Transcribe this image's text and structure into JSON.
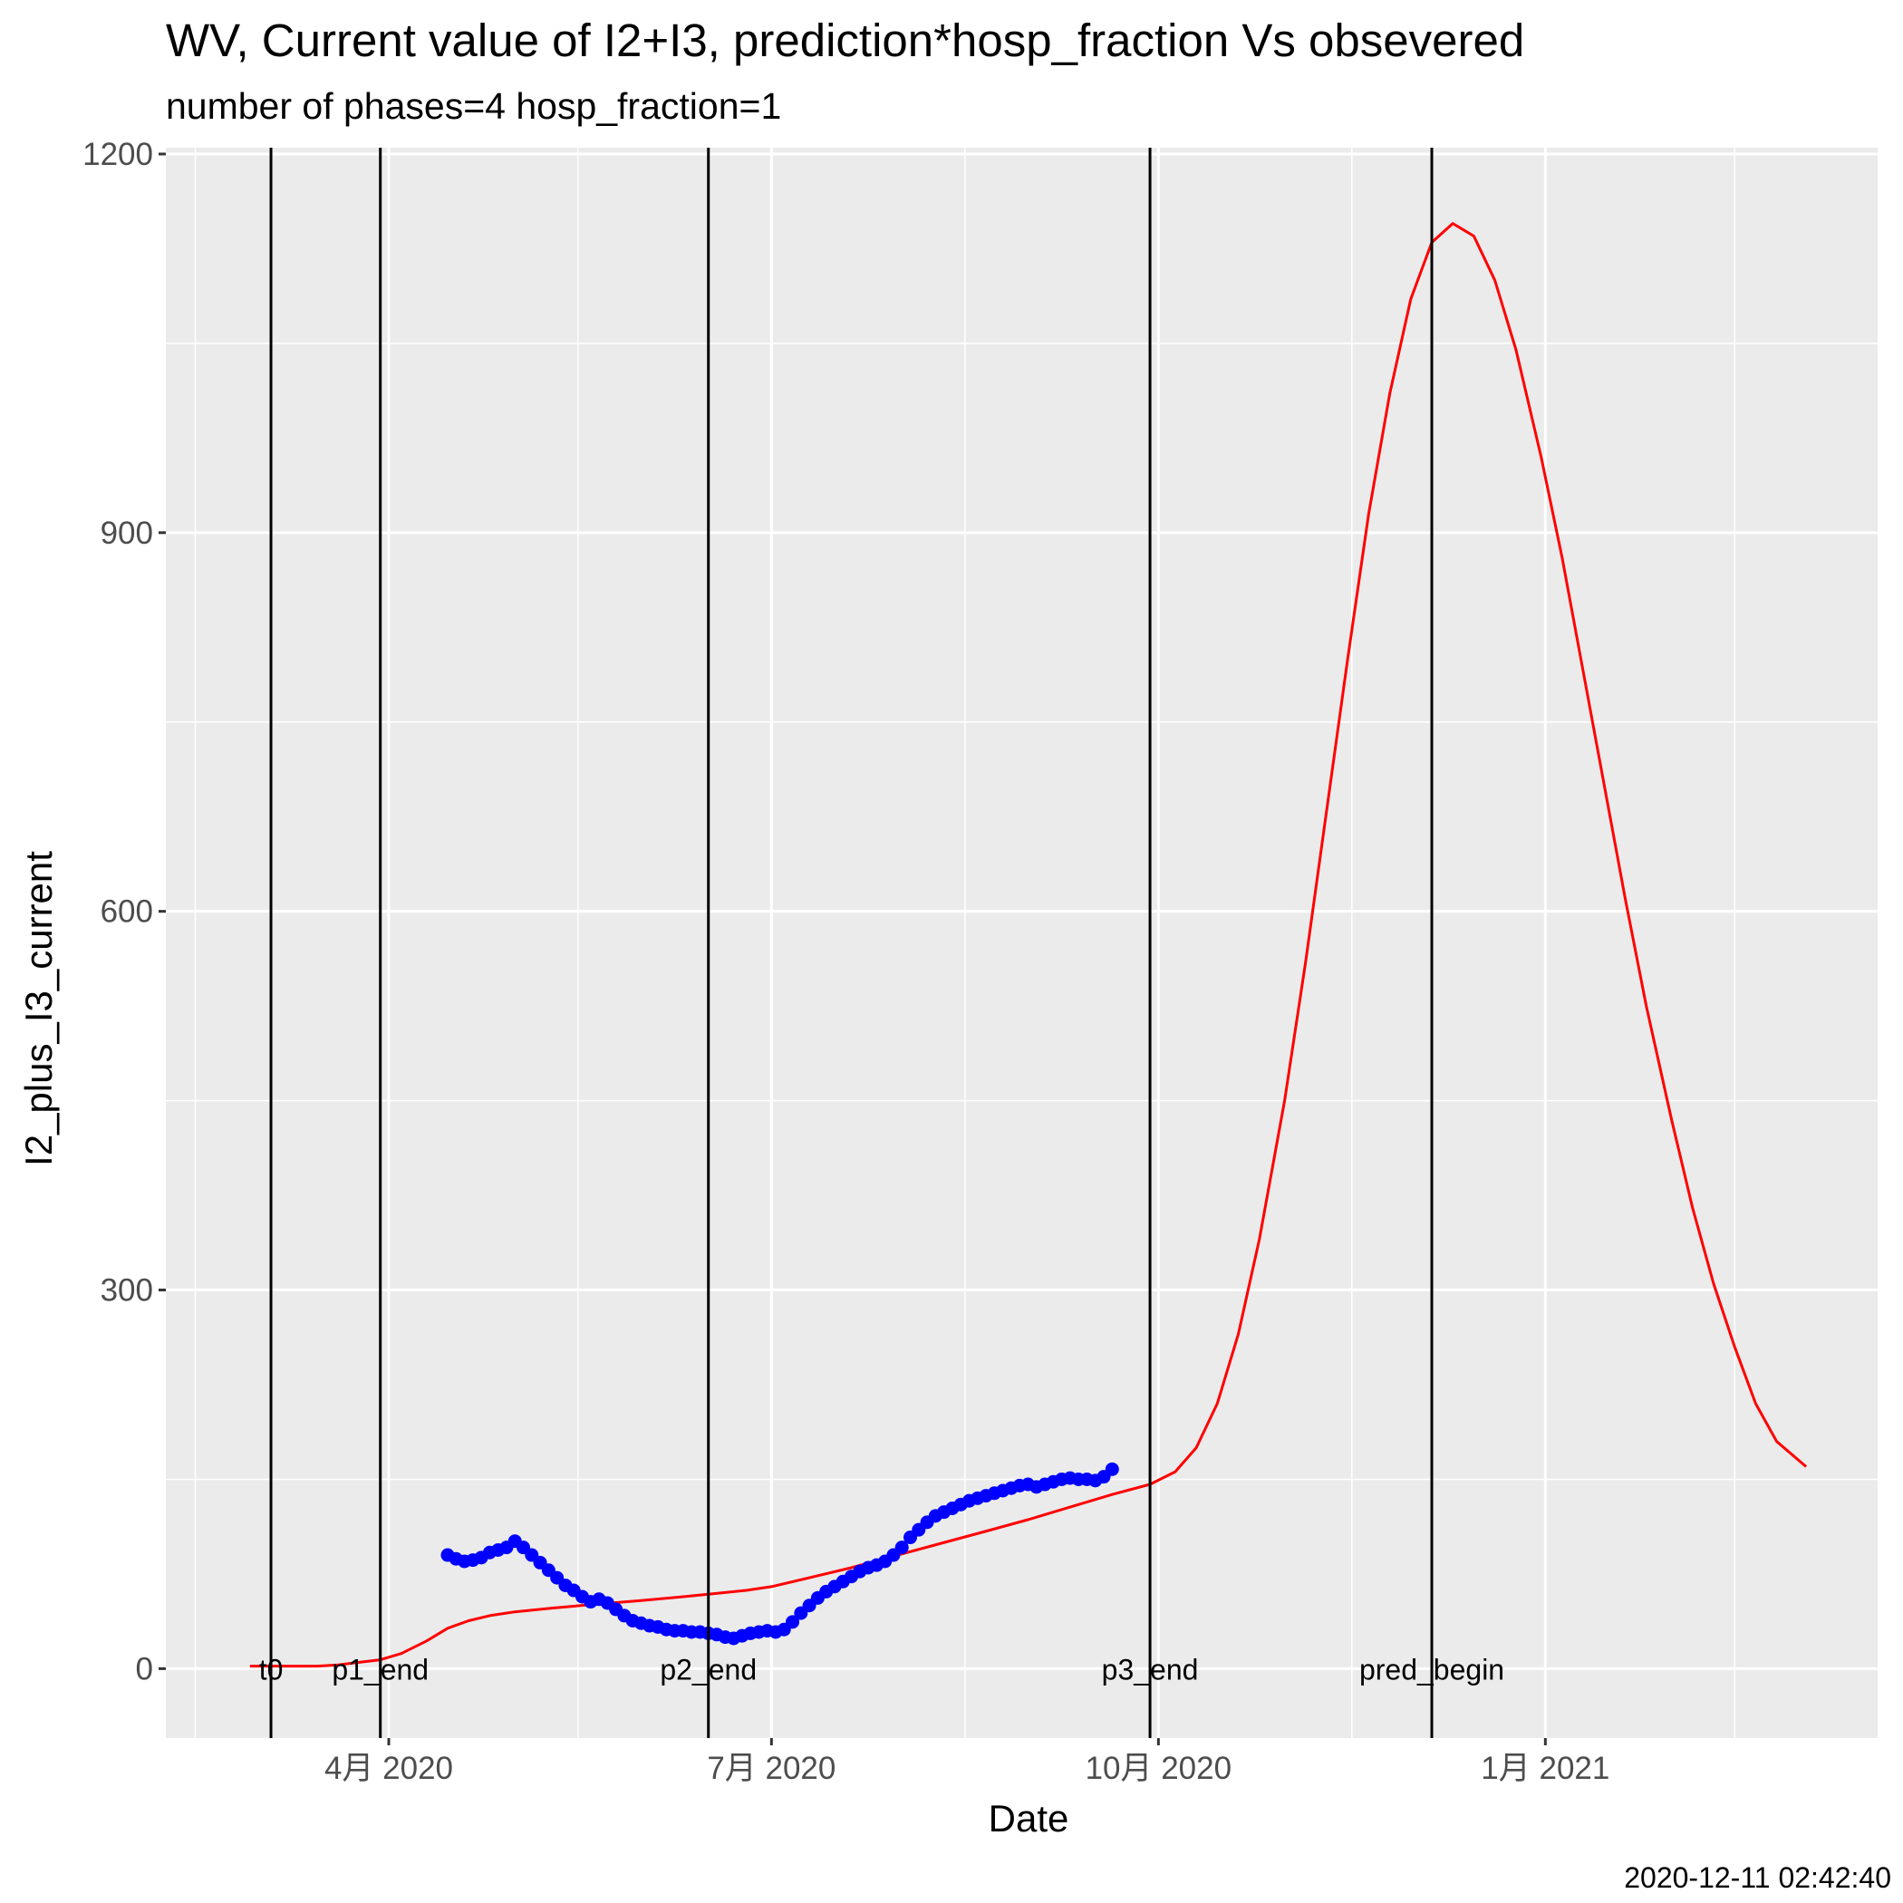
{
  "chart_data": {
    "type": "line",
    "title": "WV, Current value of I2+I3, prediction*hosp_fraction Vs obsevered",
    "subtitle": "number of phases=4   hosp_fraction=1",
    "xlabel": "Date",
    "ylabel": "I2_plus_I3_current",
    "caption": "2020-12-11 02:42:40",
    "xlim": [
      "2020-02-08",
      "2021-03-21"
    ],
    "ylim": [
      -55,
      1205
    ],
    "x_ticks": [
      {
        "date": "2020-04-01",
        "label": "4月 2020"
      },
      {
        "date": "2020-07-01",
        "label": "7月 2020"
      },
      {
        "date": "2020-10-01",
        "label": "10月 2020"
      },
      {
        "date": "2021-01-01",
        "label": "1月 2021"
      }
    ],
    "x_minor_ticks": [
      "2020-02-15",
      "2020-05-16",
      "2020-08-16",
      "2020-11-16",
      "2021-02-15"
    ],
    "y_ticks": [
      0,
      300,
      600,
      900,
      1200
    ],
    "y_minor_ticks": [
      150,
      450,
      750,
      1050
    ],
    "grid": true,
    "background": "#ebebeb",
    "phase_lines": [
      {
        "label": "t0",
        "date": "2020-03-04"
      },
      {
        "label": "p1_end",
        "date": "2020-03-30"
      },
      {
        "label": "p2_end",
        "date": "2020-06-16"
      },
      {
        "label": "p3_end",
        "date": "2020-09-29"
      },
      {
        "label": "pred_begin",
        "date": "2020-12-05"
      }
    ],
    "series": [
      {
        "kind": "line",
        "color": "#ff0000",
        "points": [
          [
            "2020-02-28",
            2
          ],
          [
            "2020-03-04",
            2
          ],
          [
            "2020-03-10",
            2
          ],
          [
            "2020-03-15",
            2
          ],
          [
            "2020-03-20",
            3
          ],
          [
            "2020-03-25",
            5
          ],
          [
            "2020-03-30",
            7
          ],
          [
            "2020-04-04",
            12
          ],
          [
            "2020-04-10",
            22
          ],
          [
            "2020-04-15",
            32
          ],
          [
            "2020-04-20",
            38
          ],
          [
            "2020-04-25",
            42
          ],
          [
            "2020-05-01",
            45
          ],
          [
            "2020-05-10",
            48
          ],
          [
            "2020-05-20",
            51
          ],
          [
            "2020-05-31",
            54
          ],
          [
            "2020-06-10",
            57
          ],
          [
            "2020-06-16",
            59
          ],
          [
            "2020-06-25",
            62
          ],
          [
            "2020-07-01",
            65
          ],
          [
            "2020-07-10",
            72
          ],
          [
            "2020-07-20",
            80
          ],
          [
            "2020-07-31",
            90
          ],
          [
            "2020-08-10",
            99
          ],
          [
            "2020-08-20",
            108
          ],
          [
            "2020-08-31",
            118
          ],
          [
            "2020-09-10",
            128
          ],
          [
            "2020-09-20",
            138
          ],
          [
            "2020-09-29",
            146
          ],
          [
            "2020-10-05",
            156
          ],
          [
            "2020-10-10",
            175
          ],
          [
            "2020-10-15",
            210
          ],
          [
            "2020-10-20",
            265
          ],
          [
            "2020-10-25",
            340
          ],
          [
            "2020-10-31",
            450
          ],
          [
            "2020-11-05",
            560
          ],
          [
            "2020-11-10",
            680
          ],
          [
            "2020-11-15",
            800
          ],
          [
            "2020-11-20",
            915
          ],
          [
            "2020-11-25",
            1010
          ],
          [
            "2020-11-30",
            1085
          ],
          [
            "2020-12-05",
            1130
          ],
          [
            "2020-12-10",
            1145
          ],
          [
            "2020-12-15",
            1135
          ],
          [
            "2020-12-20",
            1100
          ],
          [
            "2020-12-25",
            1045
          ],
          [
            "2020-12-31",
            960
          ],
          [
            "2021-01-05",
            880
          ],
          [
            "2021-01-10",
            790
          ],
          [
            "2021-01-15",
            700
          ],
          [
            "2021-01-20",
            610
          ],
          [
            "2021-01-25",
            525
          ],
          [
            "2021-01-31",
            435
          ],
          [
            "2021-02-05",
            365
          ],
          [
            "2021-02-10",
            305
          ],
          [
            "2021-02-15",
            255
          ],
          [
            "2021-02-20",
            210
          ],
          [
            "2021-02-25",
            180
          ],
          [
            "2021-03-04",
            160
          ]
        ]
      },
      {
        "kind": "points",
        "color": "#0000ff",
        "points": [
          [
            "2020-04-15",
            90
          ],
          [
            "2020-04-17",
            87
          ],
          [
            "2020-04-19",
            85
          ],
          [
            "2020-04-21",
            86
          ],
          [
            "2020-04-23",
            88
          ],
          [
            "2020-04-25",
            92
          ],
          [
            "2020-04-27",
            94
          ],
          [
            "2020-04-29",
            96
          ],
          [
            "2020-05-01",
            101
          ],
          [
            "2020-05-03",
            96
          ],
          [
            "2020-05-05",
            90
          ],
          [
            "2020-05-07",
            84
          ],
          [
            "2020-05-09",
            78
          ],
          [
            "2020-05-11",
            72
          ],
          [
            "2020-05-13",
            66
          ],
          [
            "2020-05-15",
            62
          ],
          [
            "2020-05-17",
            57
          ],
          [
            "2020-05-19",
            53
          ],
          [
            "2020-05-21",
            55
          ],
          [
            "2020-05-23",
            52
          ],
          [
            "2020-05-25",
            47
          ],
          [
            "2020-05-27",
            42
          ],
          [
            "2020-05-29",
            38
          ],
          [
            "2020-05-31",
            36
          ],
          [
            "2020-06-02",
            34
          ],
          [
            "2020-06-04",
            33
          ],
          [
            "2020-06-06",
            31
          ],
          [
            "2020-06-08",
            30
          ],
          [
            "2020-06-10",
            30
          ],
          [
            "2020-06-12",
            29
          ],
          [
            "2020-06-14",
            29
          ],
          [
            "2020-06-16",
            28
          ],
          [
            "2020-06-18",
            27
          ],
          [
            "2020-06-20",
            25
          ],
          [
            "2020-06-22",
            24
          ],
          [
            "2020-06-24",
            26
          ],
          [
            "2020-06-26",
            28
          ],
          [
            "2020-06-28",
            29
          ],
          [
            "2020-06-30",
            30
          ],
          [
            "2020-07-02",
            29
          ],
          [
            "2020-07-04",
            31
          ],
          [
            "2020-07-06",
            37
          ],
          [
            "2020-07-08",
            44
          ],
          [
            "2020-07-10",
            50
          ],
          [
            "2020-07-12",
            56
          ],
          [
            "2020-07-14",
            61
          ],
          [
            "2020-07-16",
            65
          ],
          [
            "2020-07-18",
            69
          ],
          [
            "2020-07-20",
            73
          ],
          [
            "2020-07-22",
            77
          ],
          [
            "2020-07-24",
            80
          ],
          [
            "2020-07-26",
            82
          ],
          [
            "2020-07-28",
            85
          ],
          [
            "2020-07-30",
            90
          ],
          [
            "2020-08-01",
            96
          ],
          [
            "2020-08-03",
            104
          ],
          [
            "2020-08-05",
            110
          ],
          [
            "2020-08-07",
            116
          ],
          [
            "2020-08-09",
            121
          ],
          [
            "2020-08-11",
            124
          ],
          [
            "2020-08-13",
            127
          ],
          [
            "2020-08-15",
            130
          ],
          [
            "2020-08-17",
            133
          ],
          [
            "2020-08-19",
            135
          ],
          [
            "2020-08-21",
            137
          ],
          [
            "2020-08-23",
            139
          ],
          [
            "2020-08-25",
            141
          ],
          [
            "2020-08-27",
            143
          ],
          [
            "2020-08-29",
            145
          ],
          [
            "2020-08-31",
            146
          ],
          [
            "2020-09-02",
            144
          ],
          [
            "2020-09-04",
            146
          ],
          [
            "2020-09-06",
            148
          ],
          [
            "2020-09-08",
            150
          ],
          [
            "2020-09-10",
            151
          ],
          [
            "2020-09-12",
            150
          ],
          [
            "2020-09-14",
            150
          ],
          [
            "2020-09-16",
            149
          ],
          [
            "2020-09-18",
            152
          ],
          [
            "2020-09-20",
            158
          ]
        ]
      }
    ]
  }
}
